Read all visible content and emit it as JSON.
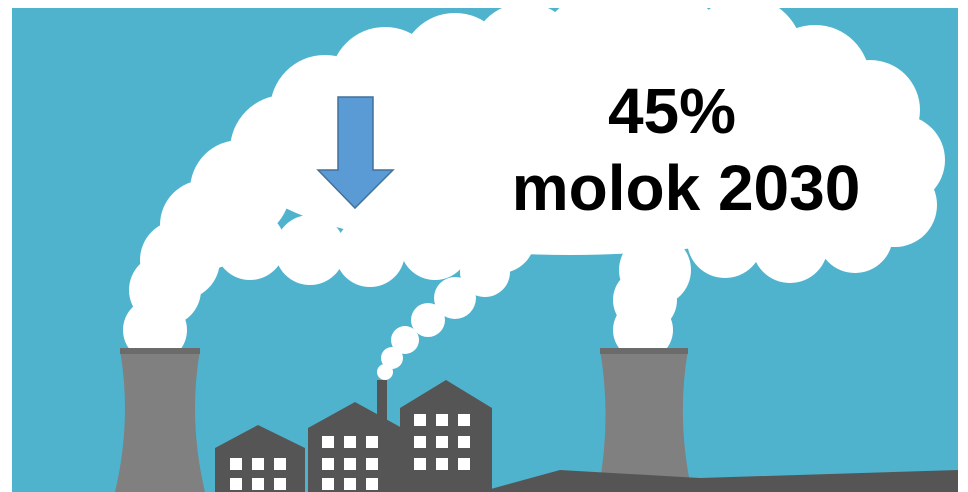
{
  "headline": {
    "line1": "45%",
    "line2": "molok 2030"
  }
}
